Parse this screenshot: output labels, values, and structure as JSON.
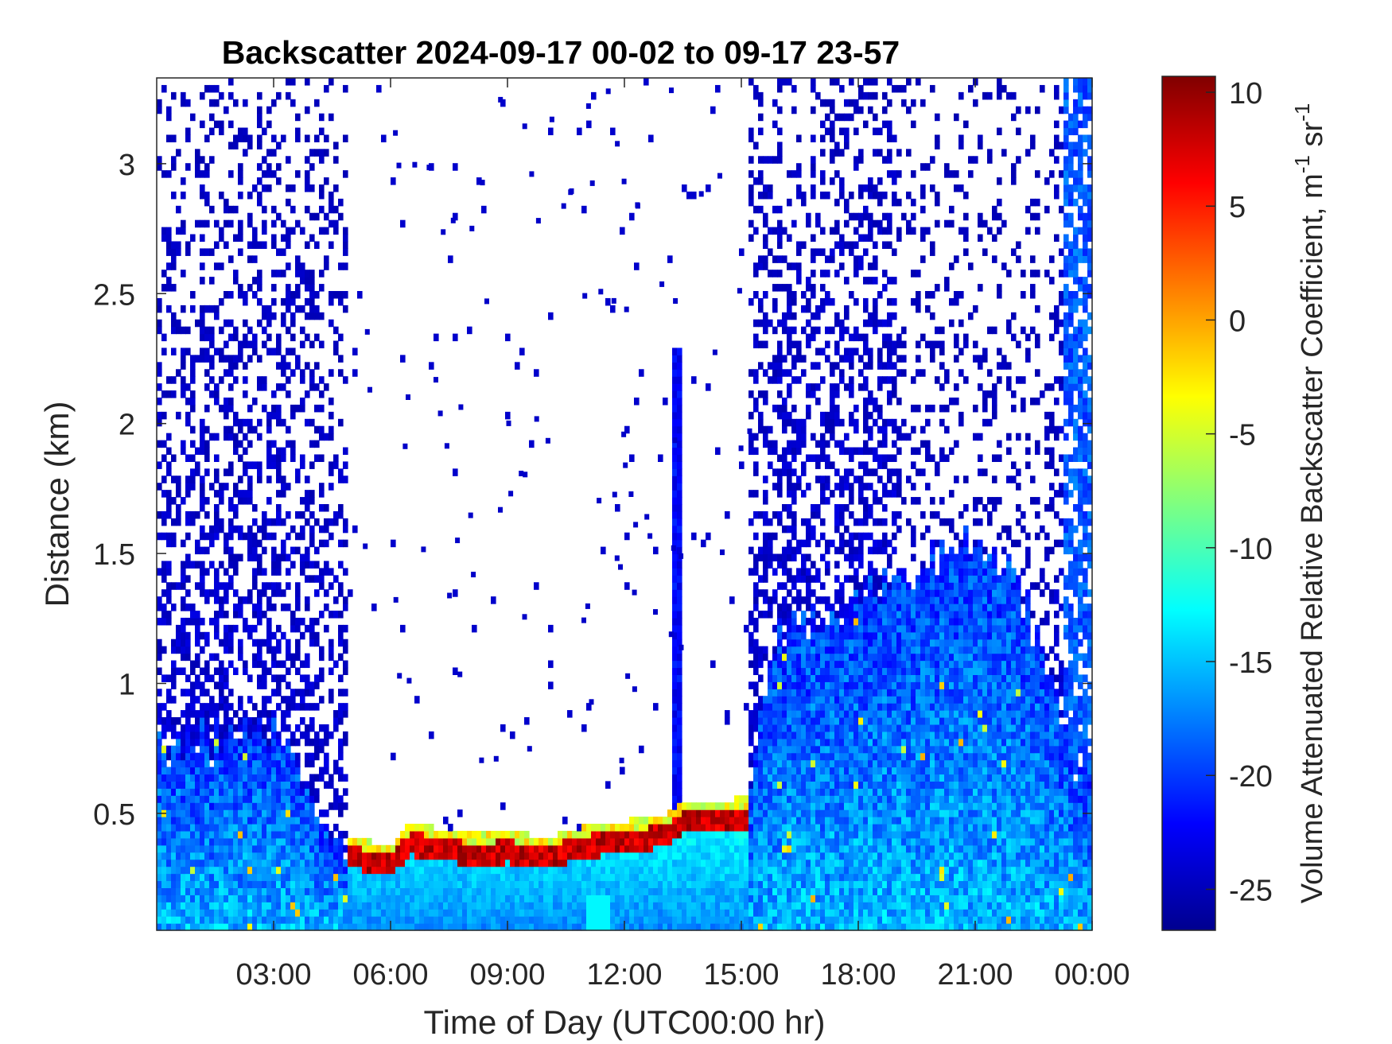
{
  "chart_data": {
    "type": "heatmap",
    "title": "Backscatter 2024-09-17 00-02 to 09-17 23-57",
    "xlabel": "Time of Day (UTC00:00 hr)",
    "ylabel": "Distance (km)",
    "x_ticks": [
      "03:00",
      "06:00",
      "09:00",
      "12:00",
      "15:00",
      "18:00",
      "21:00",
      "00:00"
    ],
    "x_tick_hours": [
      3,
      6,
      9,
      12,
      15,
      18,
      21,
      24
    ],
    "x_range_hours": [
      0,
      24
    ],
    "y_ticks": [
      "0.5",
      "1",
      "1.5",
      "2",
      "2.5",
      "3"
    ],
    "y_tick_values": [
      0.5,
      1,
      1.5,
      2,
      2.5,
      3
    ],
    "y_range_km": [
      0.05,
      3.33
    ],
    "colorbar": {
      "label": "Volume Attenuated Relative Backscatter Coefficient, m",
      "label_sup1": "-1",
      "label_mid": " sr",
      "label_sup2": "-1",
      "ticks": [
        "10",
        "5",
        "0",
        "-5",
        "-10",
        "-15",
        "-20",
        "-25"
      ],
      "tick_values": [
        10,
        5,
        0,
        -5,
        -10,
        -15,
        -20,
        -25
      ],
      "range": [
        -26.8,
        10.7
      ],
      "colormap": "jet"
    },
    "features": {
      "low_cloud_layer": {
        "description_hidden": false,
        "points_hour_km": [
          [
            4.9,
            0.34
          ],
          [
            5.5,
            0.31
          ],
          [
            6.0,
            0.3
          ],
          [
            6.5,
            0.38
          ],
          [
            7.0,
            0.37
          ],
          [
            8.0,
            0.34
          ],
          [
            9.0,
            0.35
          ],
          [
            10.0,
            0.33
          ],
          [
            11.0,
            0.37
          ],
          [
            12.0,
            0.39
          ],
          [
            13.0,
            0.41
          ],
          [
            13.5,
            0.46
          ],
          [
            14.5,
            0.47
          ],
          [
            15.1,
            0.48
          ]
        ],
        "peak_value": 9
      },
      "boundary_layer_top_km": [
        [
          0,
          0.75
        ],
        [
          3,
          0.8
        ],
        [
          5,
          0.35
        ],
        [
          15,
          0.45
        ],
        [
          16,
          1.2
        ],
        [
          18,
          1.3
        ],
        [
          20.5,
          1.55
        ],
        [
          22,
          1.4
        ],
        [
          23,
          1.0
        ],
        [
          24,
          0.5
        ]
      ]
    },
    "grid": false,
    "legend": "colorbar-right"
  }
}
